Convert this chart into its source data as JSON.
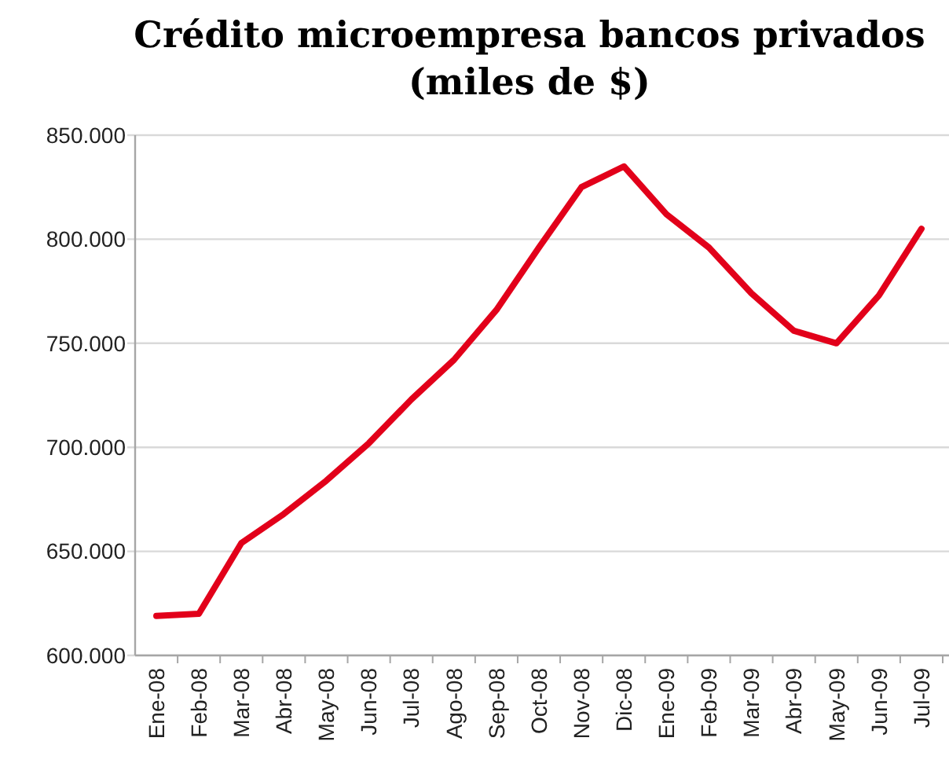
{
  "chart_data": {
    "type": "line",
    "title": "Crédito microempresa bancos privados (miles de $)",
    "categories": [
      "Ene-08",
      "Feb-08",
      "Mar-08",
      "Abr-08",
      "May-08",
      "Jun-08",
      "Jul-08",
      "Ago-08",
      "Sep-08",
      "Oct-08",
      "Nov-08",
      "Dic-08",
      "Ene-09",
      "Feb-09",
      "Mar-09",
      "Abr-09",
      "May-09",
      "Jun-09",
      "Jul-09"
    ],
    "series": [
      {
        "color": "#e2001a",
        "values": [
          619000,
          620000,
          654000,
          668000,
          684000,
          702000,
          723000,
          742000,
          766000,
          796000,
          825000,
          835000,
          812000,
          796000,
          774000,
          756000,
          750000,
          773000,
          805000
        ]
      }
    ],
    "ylim": [
      600000,
      850000
    ],
    "yticks": [
      {
        "value": 600000,
        "label": "600.000"
      },
      {
        "value": 650000,
        "label": "650.000"
      },
      {
        "value": 700000,
        "label": "700.000"
      },
      {
        "value": 750000,
        "label": "750.000"
      },
      {
        "value": 800000,
        "label": "800.000"
      },
      {
        "value": 850000,
        "label": "850.000"
      }
    ],
    "grid": "y",
    "marker": "none",
    "line_style": "solid"
  }
}
